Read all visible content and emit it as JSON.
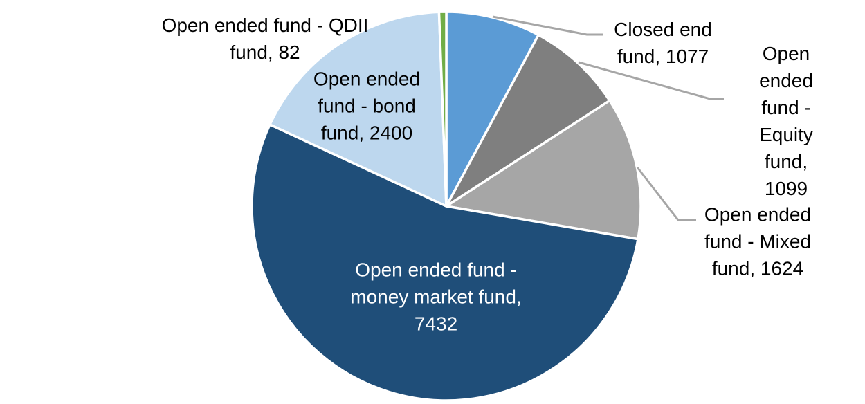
{
  "chart_data": {
    "type": "pie",
    "title": "",
    "direction": "clockwise",
    "start_angle_deg": 0,
    "background_color": "#FFFFFF",
    "slice_border_color": "#FFFFFF",
    "leader_line_color": "#A6A6A6",
    "slices": [
      {
        "name": "Closed end fund",
        "value": 1077,
        "color": "#5B9BD5",
        "display_label": "Closed end\nfund, 1077",
        "label_text_color": "#000000",
        "label_placement": "outside",
        "has_leader_line": true
      },
      {
        "name": "Open ended fund - Equity fund",
        "value": 1099,
        "color": "#7F7F7F",
        "display_label": "Open ended\nfund - Equity\nfund, 1099",
        "label_text_color": "#000000",
        "label_placement": "outside",
        "has_leader_line": true
      },
      {
        "name": "Open ended fund - Mixed fund",
        "value": 1624,
        "color": "#A6A6A6",
        "display_label": "Open ended\nfund - Mixed\nfund, 1624",
        "label_text_color": "#000000",
        "label_placement": "outside",
        "has_leader_line": true
      },
      {
        "name": "Open ended fund - money market fund",
        "value": 7432,
        "color": "#1F4E79",
        "display_label": "Open ended fund -\nmoney market fund,\n7432",
        "label_text_color": "#FFFFFF",
        "label_placement": "inside",
        "has_leader_line": false
      },
      {
        "name": "Open ended fund - bond fund",
        "value": 2400,
        "color": "#BDD7EE",
        "display_label": "Open ended\nfund - bond\nfund, 2400",
        "label_text_color": "#000000",
        "label_placement": "outside",
        "has_leader_line": false
      },
      {
        "name": "Open ended fund - QDII fund",
        "value": 82,
        "color": "#70AD47",
        "display_label": "Open ended fund - QDII\nfund, 82",
        "label_text_color": "#000000",
        "label_placement": "outside",
        "has_leader_line": false
      }
    ]
  }
}
